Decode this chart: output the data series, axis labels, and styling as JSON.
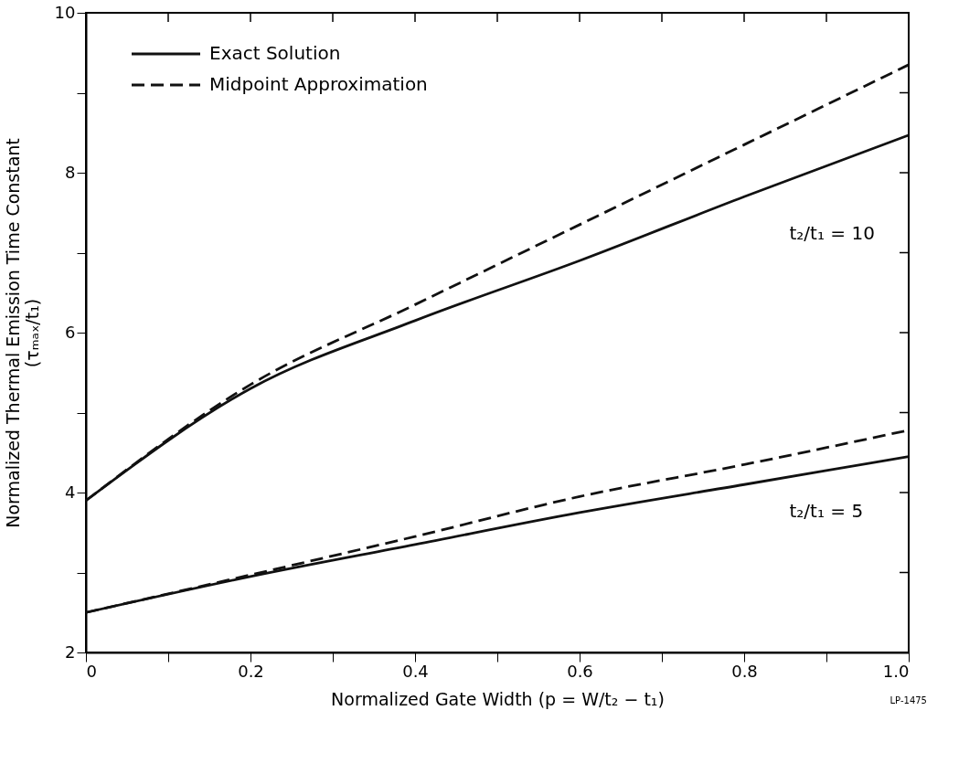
{
  "chart_data": {
    "type": "line",
    "xlabel": "Normalized Gate Width   (p = W/t₂ − t₁)",
    "ylabel": [
      "Normalized Thermal Emission Time Constant",
      "(τₘₐₓ/t₁)"
    ],
    "x": [
      0,
      0.2,
      0.4,
      0.6,
      0.8,
      1.0
    ],
    "series": [
      {
        "name": "Exact Solution",
        "color": "#111111",
        "line_style": "solid",
        "values": [
          3.9,
          5.3,
          6.15,
          6.9,
          7.7,
          8.47
        ]
      },
      {
        "name": "Midpoint Approximation",
        "color": "#111111",
        "line_style": "dashed",
        "values": [
          3.9,
          5.35,
          6.35,
          7.35,
          8.35,
          9.35
        ]
      },
      {
        "color": "#111111",
        "line_style": "solid",
        "values": [
          2.5,
          2.95,
          3.35,
          3.75,
          4.1,
          4.45
        ]
      },
      {
        "color": "#111111",
        "line_style": "dashed",
        "values": [
          2.5,
          2.97,
          3.45,
          3.95,
          4.35,
          4.78
        ]
      }
    ],
    "xlim": [
      0,
      1.0
    ],
    "ylim": [
      2,
      10
    ],
    "xticks": [
      0,
      {
        "value": 0.1,
        "label": null
      },
      0.2,
      {
        "value": 0.3,
        "label": null
      },
      0.4,
      {
        "value": 0.5,
        "label": null
      },
      0.6,
      {
        "value": 0.7,
        "label": null
      },
      0.8,
      {
        "value": 0.9,
        "label": null
      },
      {
        "value": 1.0,
        "label": "1.0"
      }
    ],
    "yticks": [
      2,
      {
        "value": 3,
        "label": null
      },
      4,
      {
        "value": 5,
        "label": null
      },
      6,
      {
        "value": 7,
        "label": null
      },
      8,
      {
        "value": 9,
        "label": null
      },
      10
    ],
    "annotations": [
      "t₂/t₁ = 10",
      "t₂/t₁ = 5",
      "LP-1475"
    ],
    "legend": "top left",
    "grid": false,
    "marker": "none"
  }
}
